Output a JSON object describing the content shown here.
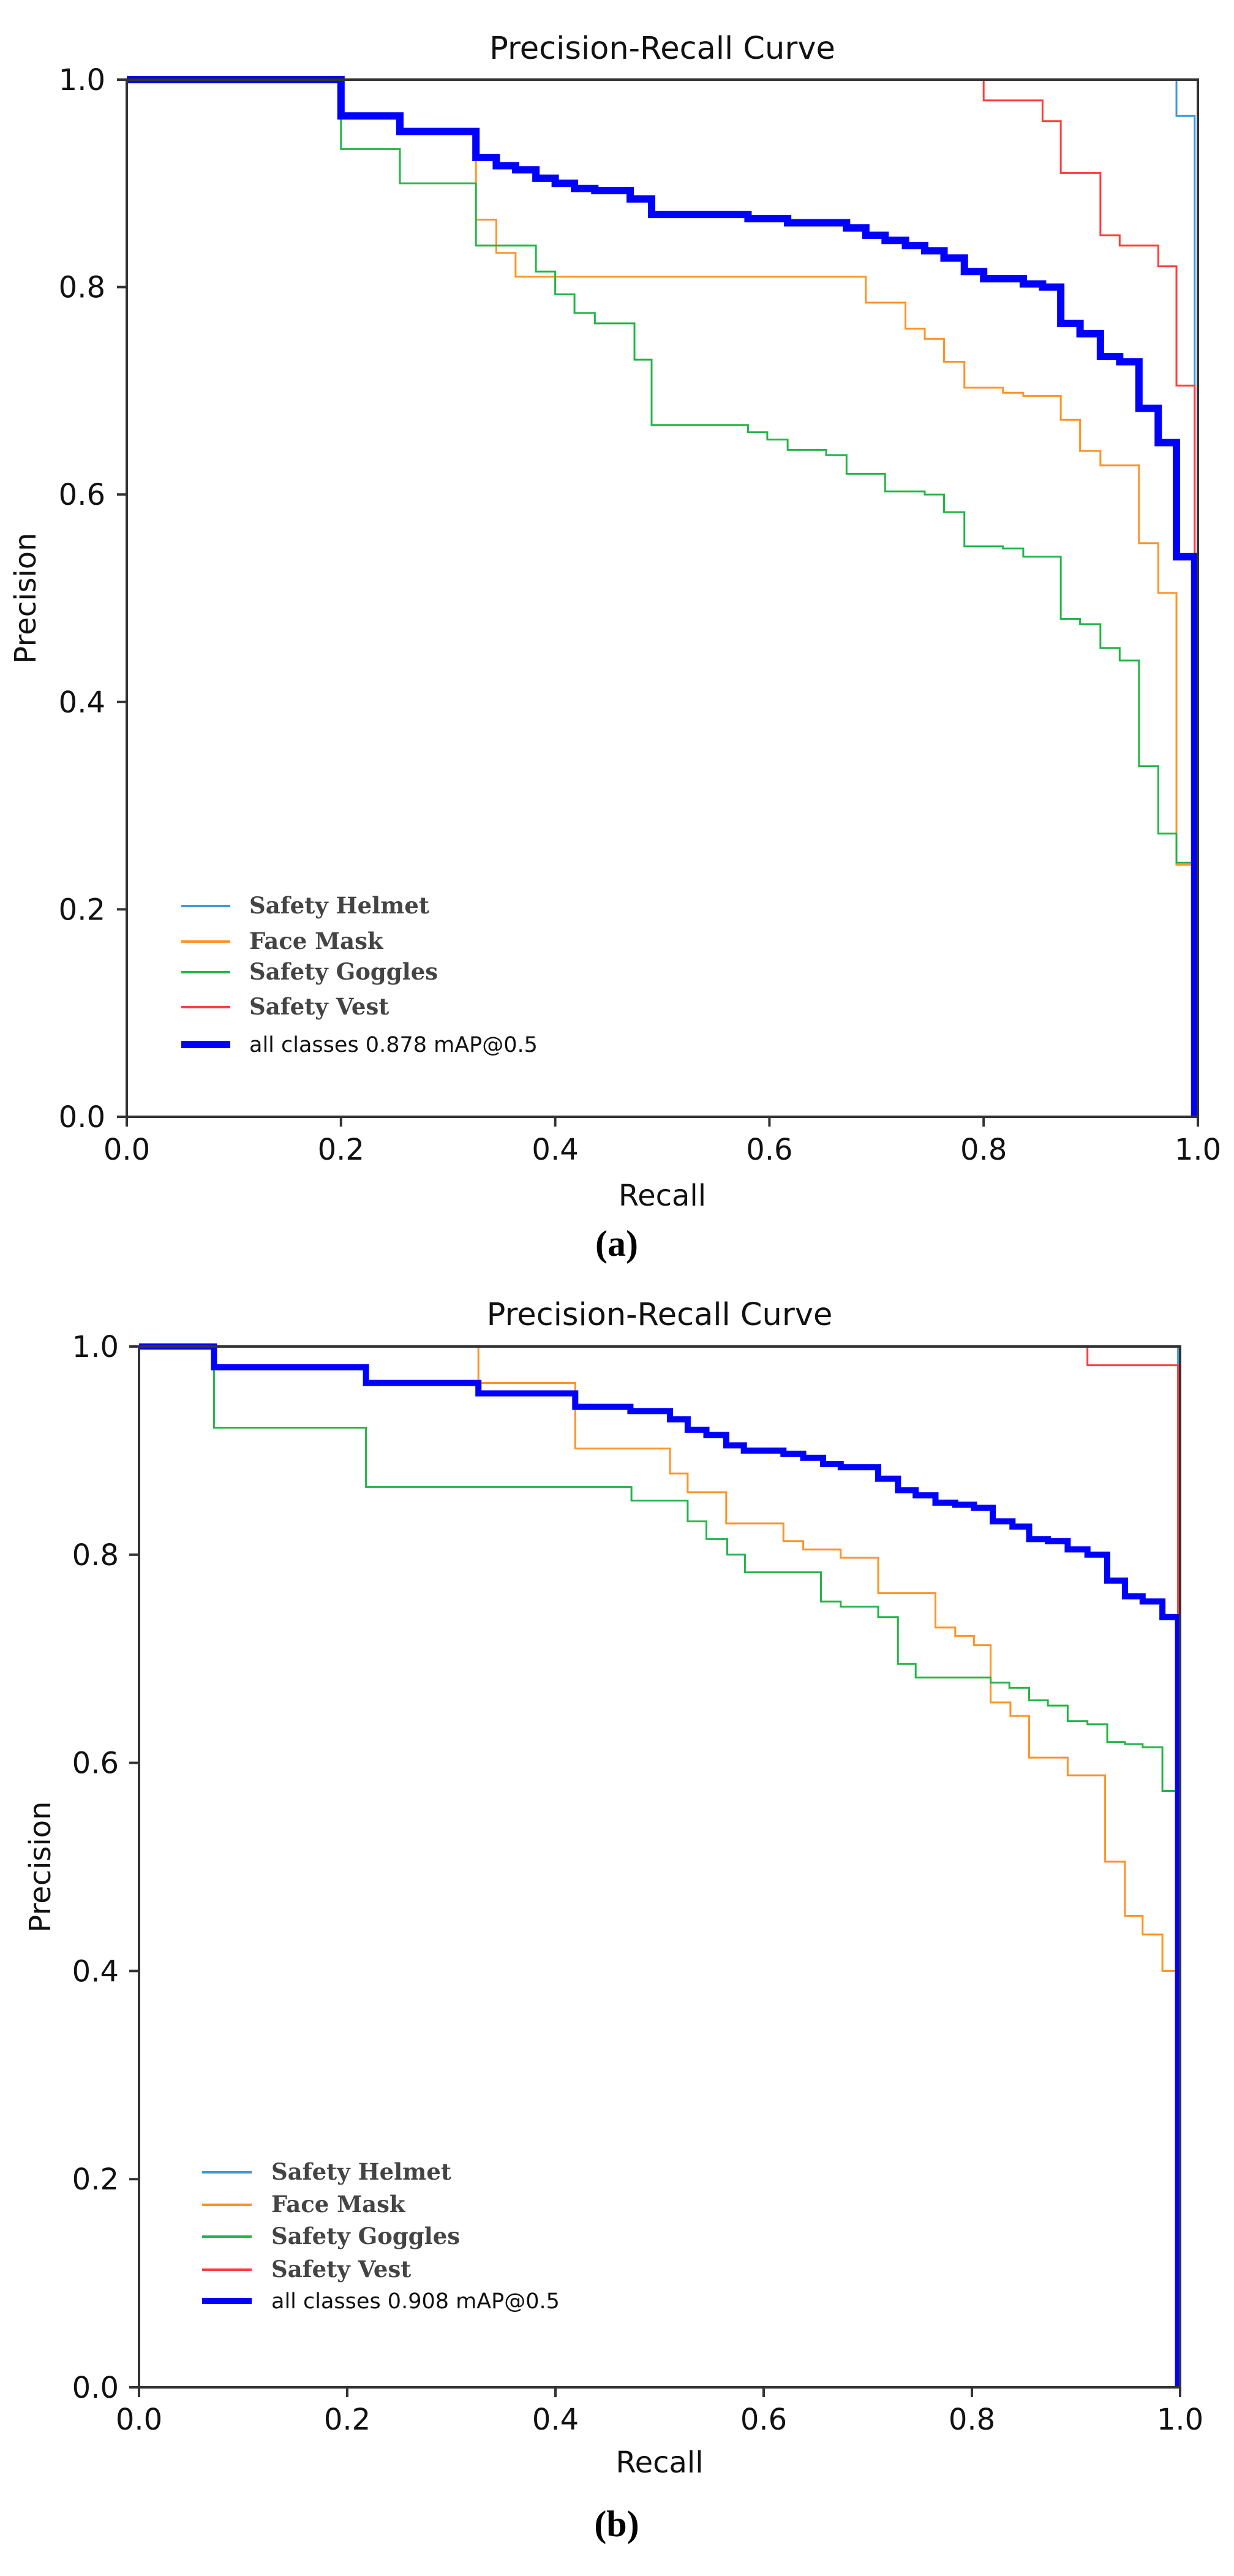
{
  "captions": [
    "(a)",
    "(b)"
  ],
  "chart_data": [
    {
      "type": "line",
      "title": "Precision-Recall Curve",
      "xlabel": "Recall",
      "ylabel": "Precision",
      "xlim": [
        0,
        1
      ],
      "ylim": [
        0,
        1
      ],
      "xticks": [
        "0.0",
        "0.2",
        "0.4",
        "0.6",
        "0.8",
        "1.0"
      ],
      "yticks": [
        "0.0",
        "0.2",
        "0.4",
        "0.6",
        "0.8",
        "1.0"
      ],
      "grid": false,
      "legend_position": "lower-left",
      "step": "drop-at-x",
      "series": [
        {
          "name": "Safety Helmet",
          "color": "#3a9ad9",
          "points": [
            [
              0,
              1
            ],
            [
              0.98,
              0.965
            ],
            [
              0.997,
              0
            ]
          ]
        },
        {
          "name": "Face Mask",
          "color": "#ff9326",
          "points": [
            [
              0,
              1
            ],
            [
              0.2,
              0.965
            ],
            [
              0.255,
              0.95
            ],
            [
              0.326,
              0.865
            ],
            [
              0.345,
              0.833
            ],
            [
              0.363,
              0.81
            ],
            [
              0.69,
              0.785
            ],
            [
              0.727,
              0.76
            ],
            [
              0.745,
              0.75
            ],
            [
              0.763,
              0.728
            ],
            [
              0.782,
              0.703
            ],
            [
              0.818,
              0.698
            ],
            [
              0.837,
              0.695
            ],
            [
              0.872,
              0.672
            ],
            [
              0.89,
              0.642
            ],
            [
              0.909,
              0.628
            ],
            [
              0.945,
              0.553
            ],
            [
              0.963,
              0.505
            ],
            [
              0.98,
              0.243
            ],
            [
              0.997,
              0
            ]
          ]
        },
        {
          "name": "Safety Goggles",
          "color": "#22b548",
          "points": [
            [
              0,
              1
            ],
            [
              0.2,
              0.933
            ],
            [
              0.255,
              0.9
            ],
            [
              0.326,
              0.84
            ],
            [
              0.382,
              0.815
            ],
            [
              0.4,
              0.793
            ],
            [
              0.418,
              0.775
            ],
            [
              0.437,
              0.765
            ],
            [
              0.474,
              0.73
            ],
            [
              0.49,
              0.667
            ],
            [
              0.58,
              0.66
            ],
            [
              0.598,
              0.653
            ],
            [
              0.617,
              0.643
            ],
            [
              0.653,
              0.638
            ],
            [
              0.672,
              0.62
            ],
            [
              0.708,
              0.603
            ],
            [
              0.745,
              0.6
            ],
            [
              0.763,
              0.583
            ],
            [
              0.782,
              0.55
            ],
            [
              0.818,
              0.548
            ],
            [
              0.837,
              0.54
            ],
            [
              0.872,
              0.48
            ],
            [
              0.89,
              0.475
            ],
            [
              0.909,
              0.452
            ],
            [
              0.927,
              0.44
            ],
            [
              0.945,
              0.338
            ],
            [
              0.963,
              0.273
            ],
            [
              0.98,
              0.245
            ],
            [
              0.997,
              0
            ]
          ]
        },
        {
          "name": "Safety Vest",
          "color": "#ff3d3d",
          "points": [
            [
              0,
              1
            ],
            [
              0.8,
              0.98
            ],
            [
              0.855,
              0.96
            ],
            [
              0.872,
              0.91
            ],
            [
              0.909,
              0.85
            ],
            [
              0.927,
              0.84
            ],
            [
              0.963,
              0.82
            ],
            [
              0.98,
              0.705
            ],
            [
              0.997,
              0
            ]
          ]
        },
        {
          "name": "all classes 0.878 mAP@0.5",
          "color": "#0000ff",
          "thick": true,
          "points": [
            [
              0,
              1
            ],
            [
              0.2,
              0.965
            ],
            [
              0.255,
              0.95
            ],
            [
              0.326,
              0.925
            ],
            [
              0.345,
              0.917
            ],
            [
              0.363,
              0.913
            ],
            [
              0.382,
              0.905
            ],
            [
              0.4,
              0.9
            ],
            [
              0.418,
              0.895
            ],
            [
              0.437,
              0.893
            ],
            [
              0.47,
              0.885
            ],
            [
              0.49,
              0.87
            ],
            [
              0.58,
              0.866
            ],
            [
              0.617,
              0.862
            ],
            [
              0.672,
              0.857
            ],
            [
              0.69,
              0.85
            ],
            [
              0.708,
              0.845
            ],
            [
              0.727,
              0.84
            ],
            [
              0.745,
              0.835
            ],
            [
              0.763,
              0.828
            ],
            [
              0.782,
              0.815
            ],
            [
              0.8,
              0.808
            ],
            [
              0.837,
              0.803
            ],
            [
              0.855,
              0.8
            ],
            [
              0.872,
              0.765
            ],
            [
              0.89,
              0.755
            ],
            [
              0.909,
              0.733
            ],
            [
              0.927,
              0.728
            ],
            [
              0.945,
              0.683
            ],
            [
              0.963,
              0.65
            ],
            [
              0.98,
              0.54
            ],
            [
              0.997,
              0
            ]
          ]
        }
      ]
    },
    {
      "type": "line",
      "title": "Precision-Recall Curve",
      "xlabel": "Recall",
      "ylabel": "Precision",
      "xlim": [
        0,
        1
      ],
      "ylim": [
        0,
        1
      ],
      "xticks": [
        "0.0",
        "0.2",
        "0.4",
        "0.6",
        "0.8",
        "1.0"
      ],
      "yticks": [
        "0.0",
        "0.2",
        "0.4",
        "0.6",
        "0.8",
        "1.0"
      ],
      "grid": false,
      "legend_position": "lower-left",
      "step": "drop-at-x",
      "series": [
        {
          "name": "Safety Helmet",
          "color": "#3a9ad9",
          "points": [
            [
              0,
              1
            ],
            [
              0.998,
              0
            ]
          ]
        },
        {
          "name": "Face Mask",
          "color": "#ff9326",
          "points": [
            [
              0,
              1
            ],
            [
              0.326,
              0.965
            ],
            [
              0.419,
              0.902
            ],
            [
              0.51,
              0.878
            ],
            [
              0.527,
              0.86
            ],
            [
              0.564,
              0.83
            ],
            [
              0.619,
              0.813
            ],
            [
              0.638,
              0.805
            ],
            [
              0.674,
              0.797
            ],
            [
              0.71,
              0.763
            ],
            [
              0.765,
              0.73
            ],
            [
              0.784,
              0.722
            ],
            [
              0.802,
              0.713
            ],
            [
              0.818,
              0.658
            ],
            [
              0.837,
              0.645
            ],
            [
              0.855,
              0.605
            ],
            [
              0.892,
              0.588
            ],
            [
              0.928,
              0.505
            ],
            [
              0.947,
              0.453
            ],
            [
              0.964,
              0.435
            ],
            [
              0.983,
              0.4
            ],
            [
              0.998,
              0
            ]
          ]
        },
        {
          "name": "Safety Goggles",
          "color": "#22b548",
          "points": [
            [
              0,
              1
            ],
            [
              0.072,
              0.922
            ],
            [
              0.218,
              0.865
            ],
            [
              0.473,
              0.852
            ],
            [
              0.527,
              0.832
            ],
            [
              0.545,
              0.815
            ],
            [
              0.565,
              0.8
            ],
            [
              0.582,
              0.783
            ],
            [
              0.655,
              0.755
            ],
            [
              0.674,
              0.75
            ],
            [
              0.71,
              0.74
            ],
            [
              0.729,
              0.695
            ],
            [
              0.746,
              0.682
            ],
            [
              0.818,
              0.677
            ],
            [
              0.836,
              0.672
            ],
            [
              0.855,
              0.66
            ],
            [
              0.873,
              0.655
            ],
            [
              0.892,
              0.64
            ],
            [
              0.911,
              0.637
            ],
            [
              0.93,
              0.62
            ],
            [
              0.947,
              0.618
            ],
            [
              0.964,
              0.615
            ],
            [
              0.983,
              0.573
            ],
            [
              0.998,
              0
            ]
          ]
        },
        {
          "name": "Safety Vest",
          "color": "#ff3d3d",
          "points": [
            [
              0,
              1
            ],
            [
              0.911,
              0.982
            ],
            [
              0.998,
              0
            ]
          ]
        },
        {
          "name": "all classes 0.908 mAP@0.5",
          "color": "#0000ff",
          "thick": true,
          "points": [
            [
              0,
              1
            ],
            [
              0.072,
              0.98
            ],
            [
              0.218,
              0.965
            ],
            [
              0.326,
              0.955
            ],
            [
              0.419,
              0.942
            ],
            [
              0.472,
              0.938
            ],
            [
              0.51,
              0.93
            ],
            [
              0.527,
              0.92
            ],
            [
              0.545,
              0.915
            ],
            [
              0.564,
              0.905
            ],
            [
              0.581,
              0.9
            ],
            [
              0.619,
              0.897
            ],
            [
              0.638,
              0.893
            ],
            [
              0.657,
              0.887
            ],
            [
              0.674,
              0.884
            ],
            [
              0.71,
              0.873
            ],
            [
              0.729,
              0.862
            ],
            [
              0.746,
              0.857
            ],
            [
              0.765,
              0.85
            ],
            [
              0.784,
              0.848
            ],
            [
              0.802,
              0.845
            ],
            [
              0.82,
              0.832
            ],
            [
              0.839,
              0.827
            ],
            [
              0.855,
              0.815
            ],
            [
              0.873,
              0.813
            ],
            [
              0.892,
              0.805
            ],
            [
              0.911,
              0.8
            ],
            [
              0.93,
              0.775
            ],
            [
              0.947,
              0.76
            ],
            [
              0.964,
              0.755
            ],
            [
              0.983,
              0.74
            ],
            [
              0.998,
              0
            ]
          ]
        }
      ]
    }
  ]
}
